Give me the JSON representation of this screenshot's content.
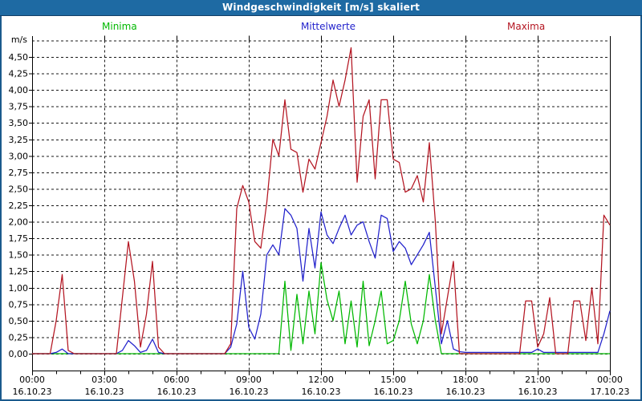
{
  "window": {
    "title": "Windgeschwindigkeit [m/s] skaliert"
  },
  "legend": [
    {
      "label": "Minima",
      "color": "#00b800"
    },
    {
      "label": "Mittelwerte",
      "color": "#2222cc"
    },
    {
      "label": "Maxima",
      "color": "#b41622"
    }
  ],
  "axes": {
    "y_unit": "m/s",
    "y_tick_labels": [
      "0,00",
      "0,25",
      "0,50",
      "0,75",
      "1,00",
      "1,25",
      "1,50",
      "1,75",
      "2,00",
      "2,25",
      "2,50",
      "2,75",
      "3,00",
      "3,25",
      "3,50",
      "3,75",
      "4,00",
      "4,25",
      "4,50"
    ],
    "x_ticks": [
      {
        "time": "00:00",
        "date": "16.10.23"
      },
      {
        "time": "03:00",
        "date": "16.10.23"
      },
      {
        "time": "06:00",
        "date": "16.10.23"
      },
      {
        "time": "09:00",
        "date": "16.10.23"
      },
      {
        "time": "12:00",
        "date": "16.10.23"
      },
      {
        "time": "15:00",
        "date": "16.10.23"
      },
      {
        "time": "18:00",
        "date": "16.10.23"
      },
      {
        "time": "21:00",
        "date": "16.10.23"
      },
      {
        "time": "00:00",
        "date": "17.10.23"
      }
    ]
  },
  "chart_data": {
    "type": "line",
    "title": "Windgeschwindigkeit [m/s] skaliert",
    "ylabel": "m/s",
    "ylim": [
      0,
      4.75
    ],
    "y_tick_step": 0.25,
    "x_start": "16.10.23 00:00",
    "x_end": "17.10.23 00:00",
    "x_step_minutes": 15,
    "grid": true,
    "legend_position": "top",
    "series": [
      {
        "name": "Minima",
        "color": "#00b800",
        "values": [
          0,
          0,
          0,
          0,
          0,
          0,
          0,
          0,
          0,
          0,
          0,
          0,
          0,
          0,
          0,
          0,
          0,
          0,
          0,
          0,
          0,
          0,
          0,
          0,
          0,
          0,
          0,
          0,
          0,
          0,
          0,
          0,
          0,
          0,
          0,
          0,
          0,
          0,
          0,
          0,
          0,
          0,
          1.1,
          0.05,
          0.9,
          0.15,
          0.95,
          0.3,
          1.38,
          0.82,
          0.5,
          0.95,
          0.15,
          0.8,
          0.1,
          1.1,
          0.12,
          0.5,
          0.95,
          0.15,
          0.2,
          0.5,
          1.1,
          0.45,
          0.15,
          0.5,
          1.2,
          0.5,
          0,
          0,
          0,
          0,
          0,
          0,
          0,
          0,
          0,
          0,
          0,
          0,
          0,
          0,
          0,
          0,
          0,
          0,
          0,
          0,
          0,
          0,
          0,
          0,
          0,
          0,
          0,
          0,
          0
        ]
      },
      {
        "name": "Mittelwerte",
        "color": "#2222cc",
        "values": [
          0,
          0,
          0,
          0,
          0.02,
          0.07,
          0,
          0,
          0,
          0,
          0,
          0,
          0,
          0,
          0,
          0.05,
          0.2,
          0.12,
          0.02,
          0.05,
          0.22,
          0.02,
          0,
          0,
          0,
          0,
          0,
          0,
          0,
          0,
          0,
          0,
          0,
          0.1,
          0.45,
          1.25,
          0.4,
          0.22,
          0.6,
          1.5,
          1.65,
          1.5,
          2.2,
          2.1,
          1.9,
          1.1,
          1.9,
          1.3,
          2.15,
          1.8,
          1.67,
          1.9,
          2.1,
          1.8,
          1.95,
          2,
          1.7,
          1.45,
          2.1,
          2.05,
          1.55,
          1.7,
          1.6,
          1.35,
          1.5,
          1.65,
          1.84,
          1,
          0.15,
          0.5,
          0.07,
          0.03,
          0.02,
          0.02,
          0.02,
          0.02,
          0.02,
          0.02,
          0.02,
          0.02,
          0.02,
          0.02,
          0.02,
          0.02,
          0.07,
          0.02,
          0.02,
          0.02,
          0.02,
          0.02,
          0.02,
          0.02,
          0.02,
          0.02,
          0.02,
          0.3,
          0.65
        ]
      },
      {
        "name": "Maxima",
        "color": "#b41622",
        "values": [
          0,
          0,
          0,
          0,
          0.5,
          1.2,
          0.05,
          0,
          0,
          0,
          0,
          0,
          0,
          0,
          0,
          0.85,
          1.7,
          1.1,
          0.1,
          0.6,
          1.4,
          0.1,
          0,
          0,
          0,
          0,
          0,
          0,
          0,
          0,
          0,
          0,
          0,
          0.15,
          2.2,
          2.55,
          2.3,
          1.7,
          1.6,
          2.3,
          3.25,
          3,
          3.85,
          3.1,
          3.05,
          2.45,
          2.95,
          2.8,
          3.2,
          3.6,
          4.15,
          3.75,
          4.15,
          4.64,
          2.6,
          3.6,
          3.85,
          2.65,
          3.85,
          3.85,
          2.95,
          2.9,
          2.45,
          2.5,
          2.7,
          2.3,
          3.2,
          2,
          0.3,
          0.85,
          1.4,
          0,
          0,
          0,
          0,
          0,
          0,
          0,
          0,
          0,
          0,
          0,
          0.8,
          0.8,
          0.1,
          0.3,
          0.85,
          0,
          0,
          0,
          0.8,
          0.8,
          0.2,
          1,
          0.15,
          2.1,
          1.95
        ]
      }
    ]
  }
}
